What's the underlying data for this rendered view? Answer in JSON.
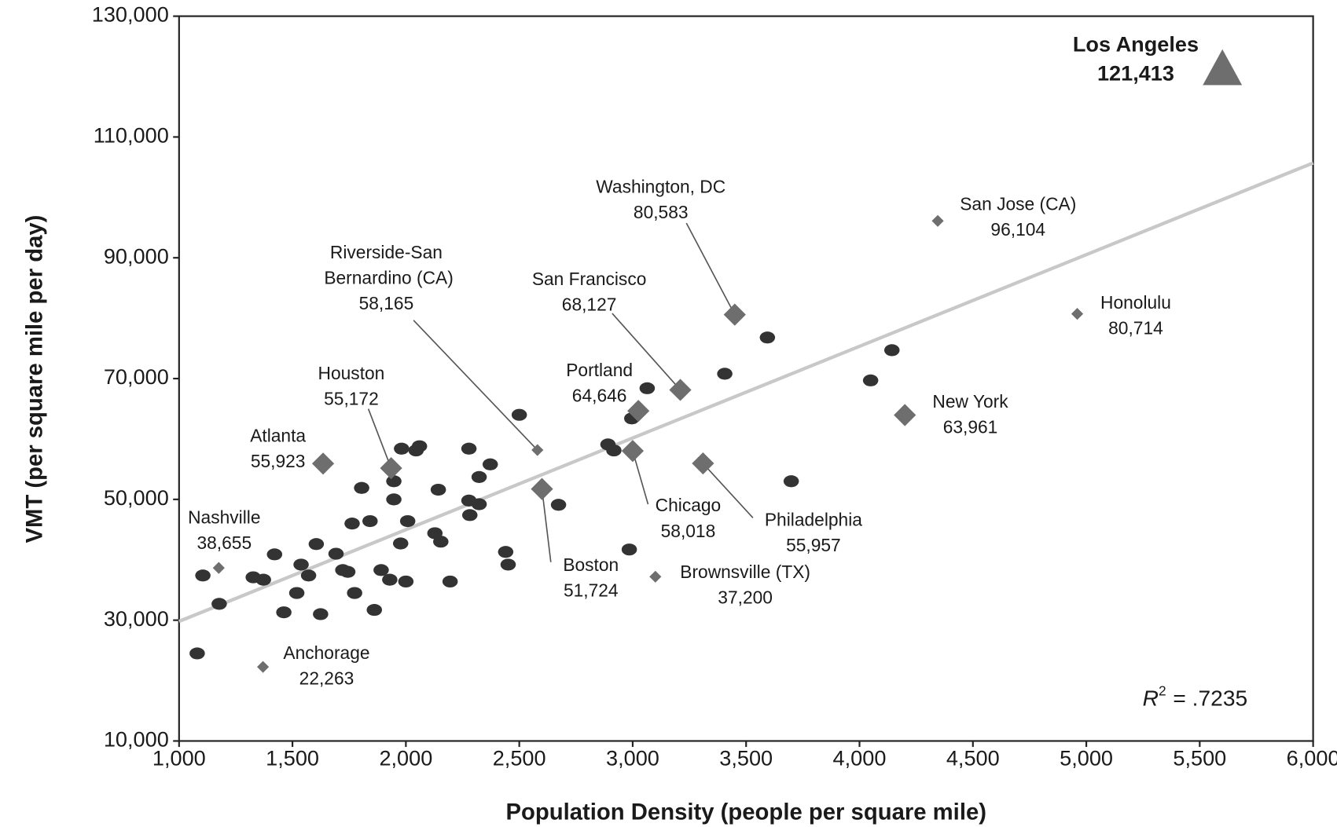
{
  "chart_data": {
    "type": "scatter",
    "x_label": "Population Density (people per square mile)",
    "y_label": "VMT (per square mile per day)",
    "xlim": [
      1000,
      6000
    ],
    "ylim": [
      10000,
      130000
    ],
    "xticks": [
      {
        "value": 1000,
        "label": "1,000"
      },
      {
        "value": 1500,
        "label": "1,500"
      },
      {
        "value": 2000,
        "label": "2,000"
      },
      {
        "value": 2500,
        "label": "2,500"
      },
      {
        "value": 3000,
        "label": "3,000"
      },
      {
        "value": 3500,
        "label": "3,500"
      },
      {
        "value": 4000,
        "label": "4,000"
      },
      {
        "value": 4500,
        "label": "4,500"
      },
      {
        "value": 5000,
        "label": "5,000"
      },
      {
        "value": 5500,
        "label": "5,500"
      },
      {
        "value": 6000,
        "label": "6,000"
      }
    ],
    "yticks": [
      {
        "value": 10000,
        "label": "10,000"
      },
      {
        "value": 30000,
        "label": "30,000"
      },
      {
        "value": 50000,
        "label": "50,000"
      },
      {
        "value": 70000,
        "label": "70,000"
      },
      {
        "value": 90000,
        "label": "90,000"
      },
      {
        "value": 110000,
        "label": "110,000"
      },
      {
        "value": 130000,
        "label": "130,000"
      }
    ],
    "grid": false,
    "series": [
      {
        "marker": "ellipse",
        "color": "#333333",
        "x": [
          1080,
          1105,
          1177,
          1327,
          1372,
          1421,
          1462,
          1519,
          1538,
          1571,
          1605,
          1624,
          1692,
          1722,
          1744,
          1763,
          1774,
          1805,
          1842,
          1861,
          1891,
          1947,
          1947,
          1929,
          1981,
          1977,
          2000,
          2008,
          2045,
          2060,
          2128,
          2143,
          2154,
          2195,
          2278,
          2278,
          2282,
          2323,
          2323,
          2372,
          2500,
          2440,
          2451,
          2673,
          2891,
          2917,
          2985,
          2996,
          3064,
          3406,
          3594,
          3699,
          4049,
          4143
        ],
        "values": [
          24500,
          37400,
          32700,
          37100,
          36700,
          40900,
          31300,
          34500,
          39200,
          37400,
          42600,
          31000,
          41000,
          38300,
          38000,
          46000,
          34500,
          51900,
          46400,
          31700,
          38300,
          53000,
          50000,
          36700,
          58400,
          42700,
          36400,
          46400,
          58100,
          58800,
          44400,
          51600,
          43000,
          36400,
          58400,
          49800,
          47400,
          49200,
          53700,
          55800,
          64000,
          41300,
          39200,
          49100,
          59100,
          58100,
          41700,
          63400,
          68400,
          70800,
          76800,
          53000,
          69700,
          74700
        ]
      },
      {
        "marker": "diamond",
        "size": "large",
        "color": "#6e6e6e",
        "labels": [
          "Washington, DC",
          "San Francisco",
          "Portland",
          "Chicago",
          "Philadelphia",
          "Boston",
          "Houston",
          "Atlanta",
          "New York"
        ],
        "x": [
          3450,
          3210,
          3025,
          3000,
          3310,
          2600,
          1935,
          1635,
          4200
        ],
        "values": [
          80583,
          68127,
          64646,
          58018,
          55957,
          51724,
          55172,
          55923,
          63961
        ],
        "value_labels": [
          "80,583",
          "68,127",
          "64,646",
          "58,018",
          "55,957",
          "51,724",
          "55,172",
          "55,923",
          "63,961"
        ]
      },
      {
        "marker": "diamond",
        "size": "small",
        "color": "#6e6e6e",
        "labels": [
          "San Jose (CA)",
          "Honolulu",
          "Riverside-San Bernardino (CA)",
          "Brownsville (TX)",
          "Nashville",
          "Anchorage"
        ],
        "x": [
          4345,
          4960,
          2580,
          3100,
          1175,
          1370
        ],
        "values": [
          96104,
          80714,
          58165,
          37200,
          38655,
          22263
        ],
        "value_labels": [
          "96,104",
          "80,714",
          "58,165",
          "37,200",
          "38,655",
          "22,263"
        ]
      },
      {
        "marker": "triangle",
        "color": "#6e6e6e",
        "bold_labels": true,
        "labels": [
          "Los Angeles"
        ],
        "x": [
          5600
        ],
        "values": [
          121413
        ],
        "value_labels": [
          "121,413"
        ]
      }
    ],
    "trendline": {
      "color": "#c8c8c8",
      "x": [
        1000,
        6000
      ],
      "values": [
        29800,
        105700
      ]
    },
    "annotation": {
      "symbol": "R",
      "superscript": "2",
      "text": "= .7235"
    }
  }
}
